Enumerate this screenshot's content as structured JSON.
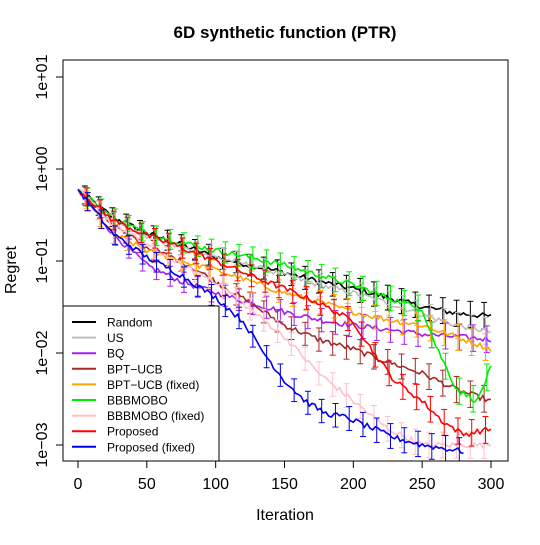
{
  "chart_data": {
    "type": "line",
    "title": "6D synthetic function (PTR)",
    "xlabel": "Iteration",
    "ylabel": "Regret",
    "xlim": [
      0,
      300
    ],
    "ylim": [
      0.0008,
      15
    ],
    "y_scale": "log",
    "x_ticks": [
      0,
      50,
      100,
      150,
      200,
      250,
      300
    ],
    "x_tick_labels": [
      "0",
      "50",
      "100",
      "150",
      "200",
      "250",
      "300"
    ],
    "y_ticks": [
      0.001,
      0.01,
      0.1,
      1,
      10
    ],
    "y_tick_labels": [
      "1e−03",
      "1e−02",
      "1e−01",
      "1e+00",
      "1e+01"
    ],
    "grid": false,
    "error_bars": true,
    "legend_position": "bottom-left",
    "series": [
      {
        "name": "Random",
        "color": "#000000",
        "x": [
          0,
          25,
          50,
          75,
          100,
          125,
          150,
          175,
          200,
          225,
          250,
          275,
          300
        ],
        "y": [
          0.6,
          0.3,
          0.2,
          0.15,
          0.11,
          0.09,
          0.075,
          0.06,
          0.05,
          0.04,
          0.032,
          0.027,
          0.025
        ]
      },
      {
        "name": "US",
        "color": "#bebebe",
        "x": [
          0,
          25,
          50,
          75,
          100,
          125,
          150,
          175,
          200,
          225,
          250,
          275,
          300
        ],
        "y": [
          0.6,
          0.27,
          0.18,
          0.14,
          0.11,
          0.09,
          0.07,
          0.055,
          0.045,
          0.035,
          0.026,
          0.02,
          0.017
        ]
      },
      {
        "name": "BQ",
        "color": "#a020f0",
        "x": [
          0,
          25,
          50,
          75,
          100,
          125,
          150,
          175,
          200,
          225,
          250,
          275,
          300
        ],
        "y": [
          0.6,
          0.2,
          0.09,
          0.06,
          0.045,
          0.035,
          0.028,
          0.023,
          0.02,
          0.018,
          0.016,
          0.015,
          0.014
        ]
      },
      {
        "name": "BPT−UCB",
        "color": "#a52a2a",
        "x": [
          0,
          25,
          50,
          75,
          100,
          125,
          150,
          175,
          200,
          225,
          250,
          275,
          300
        ],
        "y": [
          0.6,
          0.25,
          0.14,
          0.1,
          0.06,
          0.035,
          0.02,
          0.014,
          0.011,
          0.008,
          0.006,
          0.004,
          0.003
        ]
      },
      {
        "name": "BPT−UCB (fixed)",
        "color": "#ffa500",
        "x": [
          0,
          25,
          50,
          75,
          100,
          125,
          150,
          175,
          200,
          225,
          250,
          275,
          300
        ],
        "y": [
          0.6,
          0.2,
          0.13,
          0.1,
          0.08,
          0.06,
          0.045,
          0.036,
          0.028,
          0.023,
          0.02,
          0.015,
          0.011
        ]
      },
      {
        "name": "BBBMOBO",
        "color": "#00ee00",
        "x": [
          0,
          25,
          50,
          75,
          100,
          125,
          150,
          175,
          200,
          225,
          250,
          260,
          275,
          290,
          300
        ],
        "y": [
          0.6,
          0.3,
          0.2,
          0.16,
          0.13,
          0.11,
          0.09,
          0.07,
          0.055,
          0.04,
          0.03,
          0.012,
          0.004,
          0.003,
          0.007
        ]
      },
      {
        "name": "BBBMOBO (fixed)",
        "color": "#ffc0cb",
        "x": [
          0,
          25,
          50,
          75,
          100,
          125,
          150,
          175,
          200,
          225,
          250,
          275,
          300
        ],
        "y": [
          0.6,
          0.25,
          0.15,
          0.09,
          0.06,
          0.03,
          0.015,
          0.006,
          0.003,
          0.0015,
          0.001,
          0.001,
          0.001
        ]
      },
      {
        "name": "Proposed",
        "color": "#ff0000",
        "x": [
          0,
          25,
          50,
          75,
          100,
          125,
          150,
          175,
          200,
          215,
          230,
          250,
          265,
          280,
          300
        ],
        "y": [
          0.6,
          0.28,
          0.19,
          0.14,
          0.1,
          0.07,
          0.05,
          0.035,
          0.022,
          0.01,
          0.005,
          0.003,
          0.0018,
          0.0013,
          0.0015
        ]
      },
      {
        "name": "Proposed (fixed)",
        "color": "#0000ee",
        "x": [
          0,
          25,
          50,
          75,
          100,
          120,
          135,
          150,
          165,
          180,
          195,
          210,
          230,
          250,
          270,
          280
        ],
        "y": [
          0.6,
          0.2,
          0.11,
          0.07,
          0.04,
          0.022,
          0.01,
          0.005,
          0.003,
          0.0022,
          0.002,
          0.0016,
          0.0012,
          0.001,
          0.0009,
          0.00085
        ]
      }
    ]
  }
}
